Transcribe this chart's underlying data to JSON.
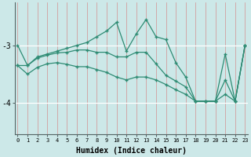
{
  "xlabel": "Humidex (Indice chaleur)",
  "x": [
    0,
    1,
    2,
    3,
    4,
    5,
    6,
    7,
    8,
    9,
    10,
    11,
    12,
    13,
    14,
    15,
    16,
    17,
    18,
    19,
    20,
    21,
    22,
    23
  ],
  "y_top": [
    -3.0,
    -3.35,
    -3.2,
    -3.15,
    -3.1,
    -3.05,
    -3.0,
    -2.95,
    -2.85,
    -2.75,
    -2.6,
    -3.1,
    -2.8,
    -2.55,
    -2.85,
    -2.9,
    -3.3,
    -3.55,
    -3.97,
    -3.97,
    -3.97,
    -3.15,
    -3.97,
    -3.0
  ],
  "y_mid": [
    -3.35,
    -3.35,
    -3.22,
    -3.17,
    -3.13,
    -3.12,
    -3.08,
    -3.08,
    -3.12,
    -3.12,
    -3.2,
    -3.2,
    -3.12,
    -3.12,
    -3.32,
    -3.52,
    -3.62,
    -3.72,
    -3.97,
    -3.97,
    -3.97,
    -3.6,
    -3.97,
    -3.0
  ],
  "y_bot": [
    -3.35,
    -3.5,
    -3.38,
    -3.32,
    -3.3,
    -3.33,
    -3.37,
    -3.37,
    -3.42,
    -3.47,
    -3.55,
    -3.6,
    -3.55,
    -3.55,
    -3.6,
    -3.68,
    -3.77,
    -3.85,
    -3.97,
    -3.97,
    -3.97,
    -3.85,
    -3.97,
    -3.0
  ],
  "line_color": "#2e8b73",
  "bg_color": "#cce8e8",
  "grid_v_color": "#d49090",
  "grid_h_color": "#ffffff",
  "ylim": [
    -4.55,
    -2.25
  ],
  "yticks": [
    -4,
    -3
  ],
  "figsize": [
    3.2,
    2.0
  ],
  "dpi": 100
}
